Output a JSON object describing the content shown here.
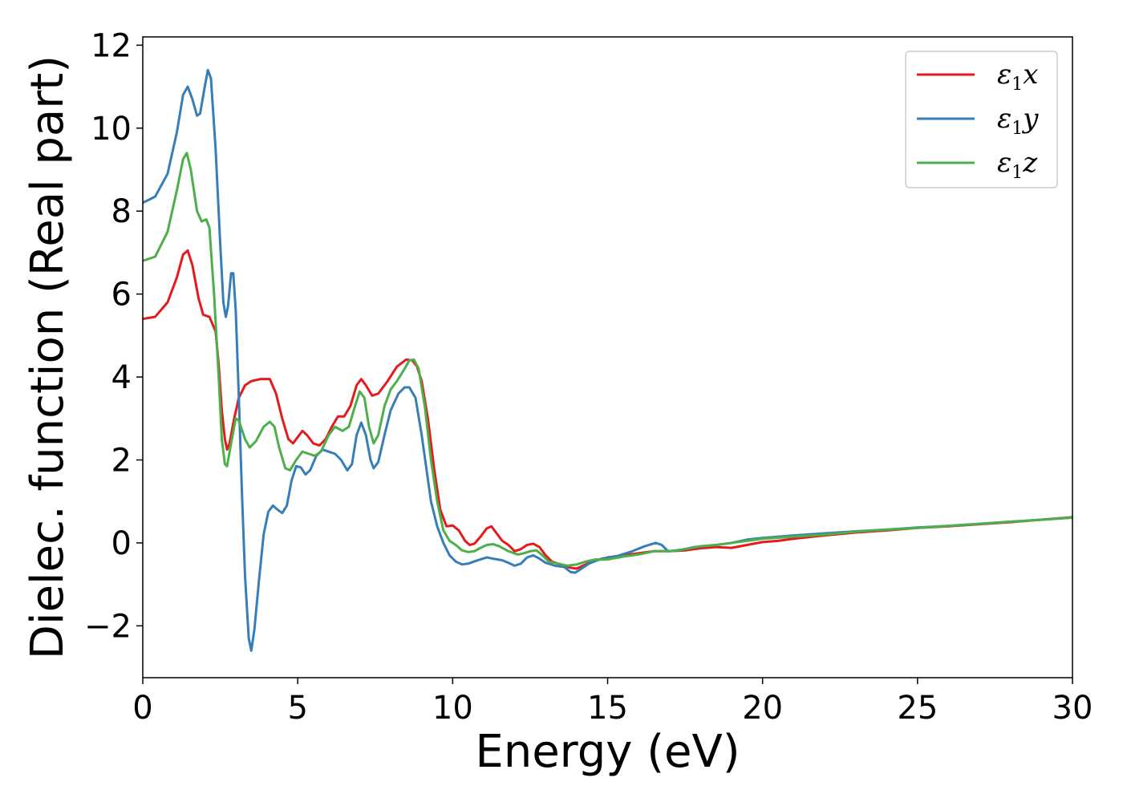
{
  "chart_data": {
    "type": "line",
    "title": "",
    "xlabel": "Energy (eV)",
    "ylabel": "Dielec. function (Real part)",
    "xlim": [
      0,
      30
    ],
    "ylim": [
      -3.25,
      12.2
    ],
    "xticks": [
      0,
      5,
      10,
      15,
      20,
      25,
      30
    ],
    "xtick_labels": [
      "0",
      "5",
      "10",
      "15",
      "20",
      "25",
      "30"
    ],
    "yticks": [
      -2,
      0,
      2,
      4,
      6,
      8,
      10,
      12
    ],
    "ytick_labels": [
      "−2",
      "0",
      "2",
      "4",
      "6",
      "8",
      "10",
      "12"
    ],
    "grid": false,
    "legend_position": "top-right",
    "series": [
      {
        "name": "ε₁x",
        "legend_base": "ε",
        "legend_sub": "1",
        "legend_var": "x",
        "color": "#e41a1c",
        "points": [
          [
            0,
            5.4
          ],
          [
            0.4,
            5.45
          ],
          [
            0.8,
            5.8
          ],
          [
            1.1,
            6.4
          ],
          [
            1.3,
            6.95
          ],
          [
            1.45,
            7.05
          ],
          [
            1.6,
            6.7
          ],
          [
            1.8,
            5.9
          ],
          [
            1.95,
            5.5
          ],
          [
            2.15,
            5.45
          ],
          [
            2.35,
            5.1
          ],
          [
            2.45,
            4.3
          ],
          [
            2.55,
            3.2
          ],
          [
            2.65,
            2.5
          ],
          [
            2.72,
            2.25
          ],
          [
            2.8,
            2.4
          ],
          [
            2.95,
            3.0
          ],
          [
            3.1,
            3.5
          ],
          [
            3.3,
            3.8
          ],
          [
            3.5,
            3.9
          ],
          [
            3.8,
            3.95
          ],
          [
            4.1,
            3.95
          ],
          [
            4.3,
            3.6
          ],
          [
            4.5,
            3.0
          ],
          [
            4.7,
            2.5
          ],
          [
            4.85,
            2.4
          ],
          [
            5.0,
            2.55
          ],
          [
            5.15,
            2.7
          ],
          [
            5.3,
            2.6
          ],
          [
            5.5,
            2.4
          ],
          [
            5.7,
            2.35
          ],
          [
            5.9,
            2.5
          ],
          [
            6.1,
            2.8
          ],
          [
            6.3,
            3.05
          ],
          [
            6.5,
            3.05
          ],
          [
            6.7,
            3.3
          ],
          [
            6.9,
            3.8
          ],
          [
            7.05,
            3.95
          ],
          [
            7.2,
            3.8
          ],
          [
            7.4,
            3.55
          ],
          [
            7.6,
            3.6
          ],
          [
            7.9,
            3.9
          ],
          [
            8.2,
            4.25
          ],
          [
            8.5,
            4.42
          ],
          [
            8.7,
            4.4
          ],
          [
            8.85,
            4.25
          ],
          [
            9.0,
            3.9
          ],
          [
            9.2,
            3.0
          ],
          [
            9.4,
            1.8
          ],
          [
            9.6,
            0.8
          ],
          [
            9.8,
            0.4
          ],
          [
            10.0,
            0.42
          ],
          [
            10.2,
            0.3
          ],
          [
            10.4,
            0.05
          ],
          [
            10.55,
            -0.05
          ],
          [
            10.7,
            -0.02
          ],
          [
            10.9,
            0.15
          ],
          [
            11.1,
            0.35
          ],
          [
            11.25,
            0.4
          ],
          [
            11.4,
            0.25
          ],
          [
            11.6,
            0.05
          ],
          [
            11.8,
            -0.05
          ],
          [
            12.0,
            -0.2
          ],
          [
            12.2,
            -0.15
          ],
          [
            12.4,
            -0.05
          ],
          [
            12.6,
            -0.02
          ],
          [
            12.8,
            -0.1
          ],
          [
            13.0,
            -0.3
          ],
          [
            13.2,
            -0.45
          ],
          [
            13.4,
            -0.5
          ],
          [
            13.6,
            -0.55
          ],
          [
            13.8,
            -0.6
          ],
          [
            14.0,
            -0.62
          ],
          [
            14.2,
            -0.55
          ],
          [
            14.5,
            -0.45
          ],
          [
            15.0,
            -0.35
          ],
          [
            15.5,
            -0.3
          ],
          [
            16.0,
            -0.25
          ],
          [
            16.5,
            -0.2
          ],
          [
            17.0,
            -0.2
          ],
          [
            17.5,
            -0.18
          ],
          [
            18.0,
            -0.13
          ],
          [
            18.5,
            -0.1
          ],
          [
            19.0,
            -0.12
          ],
          [
            19.5,
            -0.05
          ],
          [
            20.0,
            0.02
          ],
          [
            20.5,
            0.05
          ],
          [
            21.0,
            0.1
          ],
          [
            22.0,
            0.18
          ],
          [
            23.0,
            0.25
          ],
          [
            24.0,
            0.3
          ],
          [
            25.0,
            0.36
          ],
          [
            26.0,
            0.4
          ],
          [
            27.0,
            0.45
          ],
          [
            28.0,
            0.5
          ],
          [
            29.0,
            0.56
          ],
          [
            30.0,
            0.62
          ]
        ]
      },
      {
        "name": "ε₁y",
        "legend_base": "ε",
        "legend_sub": "1",
        "legend_var": "y",
        "color": "#377eb8",
        "points": [
          [
            0,
            8.2
          ],
          [
            0.4,
            8.35
          ],
          [
            0.8,
            8.9
          ],
          [
            1.1,
            9.9
          ],
          [
            1.3,
            10.8
          ],
          [
            1.45,
            11.0
          ],
          [
            1.6,
            10.7
          ],
          [
            1.75,
            10.3
          ],
          [
            1.85,
            10.35
          ],
          [
            2.0,
            11.0
          ],
          [
            2.1,
            11.4
          ],
          [
            2.2,
            11.2
          ],
          [
            2.35,
            9.5
          ],
          [
            2.5,
            7.2
          ],
          [
            2.6,
            5.8
          ],
          [
            2.68,
            5.45
          ],
          [
            2.75,
            5.7
          ],
          [
            2.85,
            6.5
          ],
          [
            2.92,
            6.5
          ],
          [
            3.0,
            5.6
          ],
          [
            3.1,
            3.5
          ],
          [
            3.2,
            1.2
          ],
          [
            3.3,
            -0.8
          ],
          [
            3.42,
            -2.3
          ],
          [
            3.5,
            -2.6
          ],
          [
            3.6,
            -2.1
          ],
          [
            3.75,
            -0.9
          ],
          [
            3.9,
            0.2
          ],
          [
            4.05,
            0.75
          ],
          [
            4.2,
            0.9
          ],
          [
            4.35,
            0.8
          ],
          [
            4.5,
            0.72
          ],
          [
            4.65,
            0.9
          ],
          [
            4.8,
            1.5
          ],
          [
            4.95,
            1.85
          ],
          [
            5.1,
            1.82
          ],
          [
            5.25,
            1.65
          ],
          [
            5.4,
            1.75
          ],
          [
            5.6,
            2.1
          ],
          [
            5.8,
            2.25
          ],
          [
            6.0,
            2.2
          ],
          [
            6.2,
            2.15
          ],
          [
            6.4,
            2.0
          ],
          [
            6.6,
            1.75
          ],
          [
            6.75,
            1.9
          ],
          [
            6.9,
            2.6
          ],
          [
            7.05,
            2.9
          ],
          [
            7.2,
            2.6
          ],
          [
            7.35,
            2.0
          ],
          [
            7.45,
            1.8
          ],
          [
            7.6,
            1.95
          ],
          [
            7.8,
            2.6
          ],
          [
            8.0,
            3.2
          ],
          [
            8.25,
            3.6
          ],
          [
            8.45,
            3.75
          ],
          [
            8.6,
            3.75
          ],
          [
            8.8,
            3.5
          ],
          [
            9.0,
            2.6
          ],
          [
            9.15,
            1.8
          ],
          [
            9.3,
            1.0
          ],
          [
            9.5,
            0.4
          ],
          [
            9.7,
            0.0
          ],
          [
            9.9,
            -0.3
          ],
          [
            10.1,
            -0.45
          ],
          [
            10.3,
            -0.52
          ],
          [
            10.5,
            -0.5
          ],
          [
            10.8,
            -0.42
          ],
          [
            11.1,
            -0.35
          ],
          [
            11.3,
            -0.38
          ],
          [
            11.6,
            -0.42
          ],
          [
            11.8,
            -0.48
          ],
          [
            12.0,
            -0.55
          ],
          [
            12.2,
            -0.5
          ],
          [
            12.4,
            -0.35
          ],
          [
            12.6,
            -0.3
          ],
          [
            12.8,
            -0.38
          ],
          [
            13.0,
            -0.48
          ],
          [
            13.3,
            -0.55
          ],
          [
            13.6,
            -0.58
          ],
          [
            13.8,
            -0.7
          ],
          [
            13.95,
            -0.72
          ],
          [
            14.1,
            -0.65
          ],
          [
            14.4,
            -0.5
          ],
          [
            14.8,
            -0.38
          ],
          [
            15.3,
            -0.32
          ],
          [
            15.8,
            -0.2
          ],
          [
            16.2,
            -0.08
          ],
          [
            16.55,
            0.0
          ],
          [
            16.75,
            -0.05
          ],
          [
            16.95,
            -0.2
          ],
          [
            17.3,
            -0.18
          ],
          [
            17.8,
            -0.1
          ],
          [
            18.5,
            -0.05
          ],
          [
            19.0,
            0.0
          ],
          [
            19.5,
            0.08
          ],
          [
            20.0,
            0.12
          ],
          [
            21.0,
            0.18
          ],
          [
            22.0,
            0.23
          ],
          [
            23.0,
            0.28
          ],
          [
            24.0,
            0.32
          ],
          [
            25.0,
            0.37
          ],
          [
            26.0,
            0.41
          ],
          [
            27.0,
            0.46
          ],
          [
            28.0,
            0.51
          ],
          [
            29.0,
            0.56
          ],
          [
            30.0,
            0.61
          ]
        ]
      },
      {
        "name": "ε₁z",
        "legend_base": "ε",
        "legend_sub": "1",
        "legend_var": "z",
        "color": "#4daf4a",
        "points": [
          [
            0,
            6.8
          ],
          [
            0.4,
            6.9
          ],
          [
            0.8,
            7.5
          ],
          [
            1.1,
            8.5
          ],
          [
            1.3,
            9.25
          ],
          [
            1.42,
            9.4
          ],
          [
            1.55,
            9.0
          ],
          [
            1.75,
            8.0
          ],
          [
            1.9,
            7.75
          ],
          [
            2.05,
            7.8
          ],
          [
            2.15,
            7.6
          ],
          [
            2.3,
            6.0
          ],
          [
            2.45,
            4.0
          ],
          [
            2.55,
            2.5
          ],
          [
            2.65,
            1.9
          ],
          [
            2.72,
            1.85
          ],
          [
            2.85,
            2.4
          ],
          [
            3.0,
            3.0
          ],
          [
            3.1,
            2.95
          ],
          [
            3.3,
            2.5
          ],
          [
            3.45,
            2.3
          ],
          [
            3.65,
            2.45
          ],
          [
            3.9,
            2.8
          ],
          [
            4.1,
            2.92
          ],
          [
            4.25,
            2.8
          ],
          [
            4.4,
            2.3
          ],
          [
            4.6,
            1.8
          ],
          [
            4.75,
            1.75
          ],
          [
            4.95,
            2.0
          ],
          [
            5.15,
            2.2
          ],
          [
            5.35,
            2.15
          ],
          [
            5.55,
            2.1
          ],
          [
            5.75,
            2.2
          ],
          [
            6.0,
            2.6
          ],
          [
            6.2,
            2.8
          ],
          [
            6.45,
            2.7
          ],
          [
            6.65,
            2.8
          ],
          [
            6.85,
            3.3
          ],
          [
            7.0,
            3.65
          ],
          [
            7.15,
            3.5
          ],
          [
            7.3,
            2.8
          ],
          [
            7.45,
            2.4
          ],
          [
            7.6,
            2.6
          ],
          [
            7.8,
            3.3
          ],
          [
            8.0,
            3.7
          ],
          [
            8.2,
            3.9
          ],
          [
            8.45,
            4.2
          ],
          [
            8.6,
            4.4
          ],
          [
            8.75,
            4.42
          ],
          [
            8.9,
            4.2
          ],
          [
            9.1,
            3.3
          ],
          [
            9.3,
            2.0
          ],
          [
            9.5,
            1.0
          ],
          [
            9.7,
            0.3
          ],
          [
            9.9,
            0.05
          ],
          [
            10.1,
            -0.05
          ],
          [
            10.3,
            -0.18
          ],
          [
            10.5,
            -0.22
          ],
          [
            10.7,
            -0.2
          ],
          [
            10.9,
            -0.12
          ],
          [
            11.1,
            -0.05
          ],
          [
            11.3,
            -0.03
          ],
          [
            11.5,
            -0.08
          ],
          [
            11.8,
            -0.2
          ],
          [
            12.1,
            -0.28
          ],
          [
            12.3,
            -0.25
          ],
          [
            12.5,
            -0.2
          ],
          [
            12.7,
            -0.18
          ],
          [
            12.9,
            -0.3
          ],
          [
            13.1,
            -0.45
          ],
          [
            13.4,
            -0.5
          ],
          [
            13.7,
            -0.55
          ],
          [
            14.0,
            -0.52
          ],
          [
            14.3,
            -0.45
          ],
          [
            14.6,
            -0.4
          ],
          [
            15.0,
            -0.4
          ],
          [
            15.5,
            -0.33
          ],
          [
            16.0,
            -0.28
          ],
          [
            16.5,
            -0.2
          ],
          [
            17.0,
            -0.2
          ],
          [
            17.5,
            -0.15
          ],
          [
            18.0,
            -0.08
          ],
          [
            18.5,
            -0.05
          ],
          [
            19.0,
            0.0
          ],
          [
            19.5,
            0.05
          ],
          [
            20.0,
            0.1
          ],
          [
            21.0,
            0.15
          ],
          [
            22.0,
            0.2
          ],
          [
            23.0,
            0.27
          ],
          [
            24.0,
            0.32
          ],
          [
            25.0,
            0.36
          ],
          [
            26.0,
            0.41
          ],
          [
            27.0,
            0.46
          ],
          [
            28.0,
            0.51
          ],
          [
            29.0,
            0.56
          ],
          [
            30.0,
            0.61
          ]
        ]
      }
    ]
  }
}
